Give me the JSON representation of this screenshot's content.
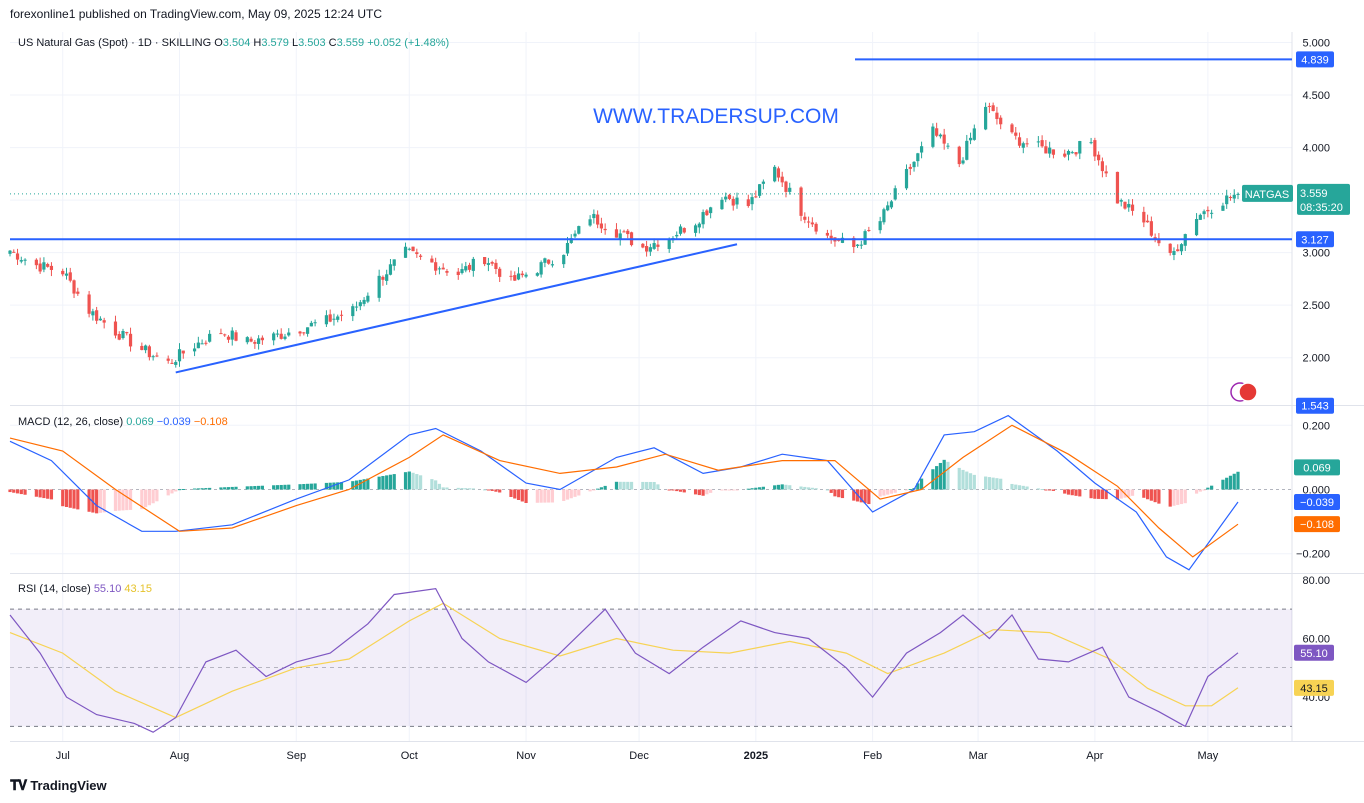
{
  "header": {
    "published": "forexonline1 published on TradingView.com, May 09, 2025 12:24 UTC"
  },
  "footer": {
    "brand": "TradingView"
  },
  "watermark": "WWW.TRADERSUP.COM",
  "colors": {
    "up": "#26a69a",
    "down": "#ef5350",
    "line": "#2962ff",
    "macd": "#2962ff",
    "signal": "#ff6d00",
    "rsi": "#7e57c2",
    "rsi_ma": "#f7d354",
    "hist_up_strong": "#26a69a",
    "hist_up_weak": "#b2dfdb",
    "hist_down_strong": "#ef5350",
    "hist_down_weak": "#ffcdd2"
  },
  "chart_data": {
    "type": "candlestick",
    "symbol_label": "US Natural Gas (Spot) · 1D · SKILLING",
    "ohlc_info": {
      "O": "3.504",
      "H": "3.579",
      "L": "3.503",
      "C": "3.559",
      "chg": "+0.052 (+1.48%)"
    },
    "price_axis": {
      "ticks": [
        "5.000",
        "4.500",
        "4.000",
        "3.500",
        "3.000",
        "2.500",
        "2.000"
      ],
      "range": [
        1.55,
        5.1
      ]
    },
    "x_labels": [
      "Jul",
      "Aug",
      "Sep",
      "Oct",
      "Nov",
      "Dec",
      "2025",
      "Feb",
      "Mar",
      "Apr",
      "May"
    ],
    "price_labels": [
      {
        "label": "4.839",
        "value": 4.839,
        "kind": "line"
      },
      {
        "label": "3.127",
        "value": 3.127,
        "kind": "line"
      },
      {
        "label": "3.559",
        "value": 3.559,
        "kind": "last",
        "symbol": "NATGAS",
        "countdown": "08:35:20"
      },
      {
        "label": "1.543",
        "value": 1.543,
        "kind": "line"
      }
    ],
    "horizontal_lines": [
      4.839,
      3.127
    ],
    "trendline": {
      "start": [
        "2024-07-31",
        1.86
      ],
      "end": [
        "2024-12-27",
        3.08
      ]
    },
    "closes": [
      {
        "d": "2024-06-17",
        "c": 3.02
      },
      {
        "d": "2024-06-24",
        "c": 2.88
      },
      {
        "d": "2024-07-01",
        "c": 2.82
      },
      {
        "d": "2024-07-08",
        "c": 2.45
      },
      {
        "d": "2024-07-15",
        "c": 2.25
      },
      {
        "d": "2024-07-22",
        "c": 2.08
      },
      {
        "d": "2024-07-29",
        "c": 1.95
      },
      {
        "d": "2024-08-05",
        "c": 2.12
      },
      {
        "d": "2024-08-12",
        "c": 2.25
      },
      {
        "d": "2024-08-19",
        "c": 2.15
      },
      {
        "d": "2024-08-26",
        "c": 2.2
      },
      {
        "d": "2024-09-02",
        "c": 2.28
      },
      {
        "d": "2024-09-09",
        "c": 2.35
      },
      {
        "d": "2024-09-16",
        "c": 2.45
      },
      {
        "d": "2024-09-23",
        "c": 2.75
      },
      {
        "d": "2024-09-30",
        "c": 3.0
      },
      {
        "d": "2024-10-07",
        "c": 2.9
      },
      {
        "d": "2024-10-14",
        "c": 2.8
      },
      {
        "d": "2024-10-21",
        "c": 2.95
      },
      {
        "d": "2024-10-28",
        "c": 2.72
      },
      {
        "d": "2024-11-04",
        "c": 2.85
      },
      {
        "d": "2024-11-11",
        "c": 3.02
      },
      {
        "d": "2024-11-18",
        "c": 3.35
      },
      {
        "d": "2024-11-25",
        "c": 3.2
      },
      {
        "d": "2024-12-02",
        "c": 3.05
      },
      {
        "d": "2024-12-09",
        "c": 3.15
      },
      {
        "d": "2024-12-16",
        "c": 3.3
      },
      {
        "d": "2024-12-23",
        "c": 3.55
      },
      {
        "d": "2024-12-30",
        "c": 3.45
      },
      {
        "d": "2025-01-06",
        "c": 3.8
      },
      {
        "d": "2025-01-13",
        "c": 3.4
      },
      {
        "d": "2025-01-20",
        "c": 3.15
      },
      {
        "d": "2025-01-27",
        "c": 3.05
      },
      {
        "d": "2025-02-03",
        "c": 3.3
      },
      {
        "d": "2025-02-10",
        "c": 3.75
      },
      {
        "d": "2025-02-17",
        "c": 4.15
      },
      {
        "d": "2025-02-24",
        "c": 3.85
      },
      {
        "d": "2025-03-03",
        "c": 4.4
      },
      {
        "d": "2025-03-10",
        "c": 4.1
      },
      {
        "d": "2025-03-17",
        "c": 4.0
      },
      {
        "d": "2025-03-24",
        "c": 3.95
      },
      {
        "d": "2025-03-31",
        "c": 4.05
      },
      {
        "d": "2025-04-07",
        "c": 3.5
      },
      {
        "d": "2025-04-14",
        "c": 3.3
      },
      {
        "d": "2025-04-21",
        "c": 2.95
      },
      {
        "d": "2025-04-28",
        "c": 3.35
      },
      {
        "d": "2025-05-05",
        "c": 3.5
      },
      {
        "d": "2025-05-09",
        "c": 3.559
      }
    ],
    "macd": {
      "label": "MACD (12, 26, close)",
      "values": {
        "hist": "0.069",
        "macd": "−0.039",
        "signal": "−0.108"
      },
      "axis_ticks": [
        "0.200",
        "0.000",
        "−0.200"
      ],
      "range": [
        -0.26,
        0.26
      ],
      "right_labels": [
        {
          "label": "0.069",
          "value": 0.069,
          "series": "hist"
        },
        {
          "label": "−0.039",
          "value": -0.039,
          "series": "macd"
        },
        {
          "label": "−0.108",
          "value": -0.108,
          "series": "signal"
        }
      ],
      "macd_points": [
        {
          "d": "2024-06-17",
          "v": 0.15
        },
        {
          "d": "2024-06-28",
          "v": 0.09
        },
        {
          "d": "2024-07-10",
          "v": -0.05
        },
        {
          "d": "2024-07-22",
          "v": -0.13
        },
        {
          "d": "2024-07-31",
          "v": -0.13
        },
        {
          "d": "2024-08-15",
          "v": -0.11
        },
        {
          "d": "2024-09-01",
          "v": -0.03
        },
        {
          "d": "2024-09-15",
          "v": 0.03
        },
        {
          "d": "2024-10-01",
          "v": 0.17
        },
        {
          "d": "2024-10-08",
          "v": 0.19
        },
        {
          "d": "2024-10-20",
          "v": 0.12
        },
        {
          "d": "2024-11-01",
          "v": 0.02
        },
        {
          "d": "2024-11-10",
          "v": 0.0
        },
        {
          "d": "2024-11-25",
          "v": 0.1
        },
        {
          "d": "2024-12-05",
          "v": 0.13
        },
        {
          "d": "2024-12-18",
          "v": 0.05
        },
        {
          "d": "2024-12-28",
          "v": 0.07
        },
        {
          "d": "2025-01-08",
          "v": 0.11
        },
        {
          "d": "2025-01-20",
          "v": 0.09
        },
        {
          "d": "2025-02-01",
          "v": -0.07
        },
        {
          "d": "2025-02-12",
          "v": 0.0
        },
        {
          "d": "2025-02-20",
          "v": 0.17
        },
        {
          "d": "2025-02-28",
          "v": 0.18
        },
        {
          "d": "2025-03-09",
          "v": 0.23
        },
        {
          "d": "2025-03-22",
          "v": 0.12
        },
        {
          "d": "2025-04-01",
          "v": 0.02
        },
        {
          "d": "2025-04-12",
          "v": -0.07
        },
        {
          "d": "2025-04-20",
          "v": -0.21
        },
        {
          "d": "2025-04-26",
          "v": -0.25
        },
        {
          "d": "2025-05-09",
          "v": -0.039
        }
      ],
      "signal_points": [
        {
          "d": "2024-06-17",
          "v": 0.16
        },
        {
          "d": "2024-07-01",
          "v": 0.12
        },
        {
          "d": "2024-07-15",
          "v": 0.0
        },
        {
          "d": "2024-08-01",
          "v": -0.13
        },
        {
          "d": "2024-08-15",
          "v": -0.12
        },
        {
          "d": "2024-09-01",
          "v": -0.05
        },
        {
          "d": "2024-09-15",
          "v": 0.0
        },
        {
          "d": "2024-10-01",
          "v": 0.1
        },
        {
          "d": "2024-10-10",
          "v": 0.17
        },
        {
          "d": "2024-10-25",
          "v": 0.09
        },
        {
          "d": "2024-11-10",
          "v": 0.05
        },
        {
          "d": "2024-11-25",
          "v": 0.07
        },
        {
          "d": "2024-12-08",
          "v": 0.11
        },
        {
          "d": "2024-12-22",
          "v": 0.06
        },
        {
          "d": "2025-01-08",
          "v": 0.09
        },
        {
          "d": "2025-01-22",
          "v": 0.09
        },
        {
          "d": "2025-02-03",
          "v": -0.03
        },
        {
          "d": "2025-02-14",
          "v": 0.0
        },
        {
          "d": "2025-02-25",
          "v": 0.1
        },
        {
          "d": "2025-03-10",
          "v": 0.2
        },
        {
          "d": "2025-03-25",
          "v": 0.11
        },
        {
          "d": "2025-04-07",
          "v": 0.01
        },
        {
          "d": "2025-04-18",
          "v": -0.12
        },
        {
          "d": "2025-04-27",
          "v": -0.21
        },
        {
          "d": "2025-05-09",
          "v": -0.108
        }
      ]
    },
    "rsi": {
      "label": "RSI (14, close)",
      "values": {
        "rsi": "55.10",
        "ma": "43.15"
      },
      "axis_ticks": [
        "80.00",
        "60.00",
        "40.00"
      ],
      "range": [
        25,
        82
      ],
      "band": [
        30,
        70
      ],
      "right_labels": [
        {
          "label": "55.10",
          "value": 55.1,
          "series": "rsi"
        },
        {
          "label": "43.15",
          "value": 43.15,
          "series": "ma"
        }
      ],
      "rsi_points": [
        {
          "d": "2024-06-17",
          "v": 68
        },
        {
          "d": "2024-06-25",
          "v": 55
        },
        {
          "d": "2024-07-02",
          "v": 40
        },
        {
          "d": "2024-07-10",
          "v": 34
        },
        {
          "d": "2024-07-20",
          "v": 31
        },
        {
          "d": "2024-07-25",
          "v": 28
        },
        {
          "d": "2024-07-31",
          "v": 33
        },
        {
          "d": "2024-08-08",
          "v": 52
        },
        {
          "d": "2024-08-16",
          "v": 56
        },
        {
          "d": "2024-08-24",
          "v": 47
        },
        {
          "d": "2024-09-01",
          "v": 52
        },
        {
          "d": "2024-09-10",
          "v": 55
        },
        {
          "d": "2024-09-20",
          "v": 65
        },
        {
          "d": "2024-09-27",
          "v": 75
        },
        {
          "d": "2024-10-08",
          "v": 77
        },
        {
          "d": "2024-10-15",
          "v": 60
        },
        {
          "d": "2024-10-22",
          "v": 52
        },
        {
          "d": "2024-11-01",
          "v": 45
        },
        {
          "d": "2024-11-10",
          "v": 55
        },
        {
          "d": "2024-11-22",
          "v": 70
        },
        {
          "d": "2024-11-30",
          "v": 55
        },
        {
          "d": "2024-12-09",
          "v": 48
        },
        {
          "d": "2024-12-18",
          "v": 57
        },
        {
          "d": "2024-12-28",
          "v": 66
        },
        {
          "d": "2025-01-06",
          "v": 62
        },
        {
          "d": "2025-01-15",
          "v": 60
        },
        {
          "d": "2025-01-25",
          "v": 50
        },
        {
          "d": "2025-02-01",
          "v": 40
        },
        {
          "d": "2025-02-10",
          "v": 55
        },
        {
          "d": "2025-02-19",
          "v": 62
        },
        {
          "d": "2025-02-25",
          "v": 68
        },
        {
          "d": "2025-03-04",
          "v": 60
        },
        {
          "d": "2025-03-10",
          "v": 68
        },
        {
          "d": "2025-03-17",
          "v": 53
        },
        {
          "d": "2025-03-25",
          "v": 52
        },
        {
          "d": "2025-04-03",
          "v": 57
        },
        {
          "d": "2025-04-10",
          "v": 40
        },
        {
          "d": "2025-04-18",
          "v": 35
        },
        {
          "d": "2025-04-25",
          "v": 30
        },
        {
          "d": "2025-05-01",
          "v": 47
        },
        {
          "d": "2025-05-09",
          "v": 55.1
        }
      ],
      "ma_points": [
        {
          "d": "2024-06-17",
          "v": 62
        },
        {
          "d": "2024-07-01",
          "v": 55
        },
        {
          "d": "2024-07-15",
          "v": 42
        },
        {
          "d": "2024-07-31",
          "v": 33
        },
        {
          "d": "2024-08-15",
          "v": 42
        },
        {
          "d": "2024-09-01",
          "v": 50
        },
        {
          "d": "2024-09-15",
          "v": 53
        },
        {
          "d": "2024-10-01",
          "v": 66
        },
        {
          "d": "2024-10-10",
          "v": 72
        },
        {
          "d": "2024-10-25",
          "v": 60
        },
        {
          "d": "2024-11-10",
          "v": 54
        },
        {
          "d": "2024-11-25",
          "v": 60
        },
        {
          "d": "2024-12-10",
          "v": 56
        },
        {
          "d": "2024-12-25",
          "v": 55
        },
        {
          "d": "2025-01-10",
          "v": 59
        },
        {
          "d": "2025-01-25",
          "v": 55
        },
        {
          "d": "2025-02-05",
          "v": 48
        },
        {
          "d": "2025-02-20",
          "v": 55
        },
        {
          "d": "2025-03-05",
          "v": 63
        },
        {
          "d": "2025-03-20",
          "v": 62
        },
        {
          "d": "2025-04-05",
          "v": 53
        },
        {
          "d": "2025-04-15",
          "v": 43
        },
        {
          "d": "2025-04-25",
          "v": 37
        },
        {
          "d": "2025-05-02",
          "v": 37
        },
        {
          "d": "2025-05-09",
          "v": 43.15
        }
      ]
    }
  }
}
